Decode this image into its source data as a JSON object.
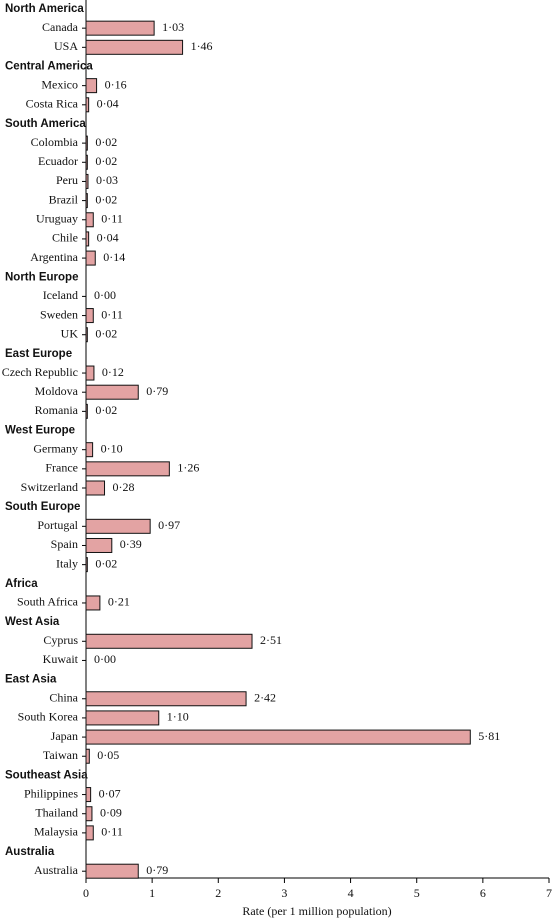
{
  "chart_data": {
    "type": "bar",
    "orientation": "horizontal",
    "color": "#e3a3a3",
    "x_label": "Rate (per 1 million population)",
    "xlim": [
      0,
      7
    ],
    "xticks": [
      0,
      1,
      2,
      3,
      4,
      5,
      6,
      7
    ],
    "groups": [
      {
        "name": "North America",
        "categories": [
          "Canada",
          "USA"
        ],
        "values": [
          1.03,
          1.46
        ],
        "value_labels": [
          "1·03",
          "1·46"
        ]
      },
      {
        "name": "Central America",
        "categories": [
          "Mexico",
          "Costa Rica"
        ],
        "values": [
          0.16,
          0.04
        ],
        "value_labels": [
          "0·16",
          "0·04"
        ]
      },
      {
        "name": "South America",
        "categories": [
          "Colombia",
          "Ecuador",
          "Peru",
          "Brazil",
          "Uruguay",
          "Chile",
          "Argentina"
        ],
        "values": [
          0.02,
          0.02,
          0.03,
          0.02,
          0.11,
          0.04,
          0.14
        ],
        "value_labels": [
          "0·02",
          "0·02",
          "0·03",
          "0·02",
          "0·11",
          "0·04",
          "0·14"
        ]
      },
      {
        "name": "North Europe",
        "categories": [
          "Iceland",
          "Sweden",
          "UK"
        ],
        "values": [
          0,
          0.11,
          0.02
        ],
        "value_labels": [
          "0·00",
          "0·11",
          "0·02"
        ]
      },
      {
        "name": "East Europe",
        "categories": [
          "Czech Republic",
          "Moldova",
          "Romania"
        ],
        "values": [
          0.12,
          0.79,
          0.02
        ],
        "value_labels": [
          "0·12",
          "0·79",
          "0·02"
        ]
      },
      {
        "name": "West Europe",
        "categories": [
          "Germany",
          "France",
          "Switzerland"
        ],
        "values": [
          0.1,
          1.26,
          0.28
        ],
        "value_labels": [
          "0·10",
          "1·26",
          "0·28"
        ]
      },
      {
        "name": "South Europe",
        "categories": [
          "Portugal",
          "Spain",
          "Italy"
        ],
        "values": [
          0.97,
          0.39,
          0.02
        ],
        "value_labels": [
          "0·97",
          "0·39",
          "0·02"
        ]
      },
      {
        "name": "Africa",
        "categories": [
          "South Africa"
        ],
        "values": [
          0.21
        ],
        "value_labels": [
          "0·21"
        ]
      },
      {
        "name": "West Asia",
        "categories": [
          "Cyprus",
          "Kuwait"
        ],
        "values": [
          2.51,
          0
        ],
        "value_labels": [
          "2·51",
          "0·00"
        ]
      },
      {
        "name": "East Asia",
        "categories": [
          "China",
          "South Korea",
          "Japan",
          "Taiwan"
        ],
        "values": [
          2.42,
          1.1,
          5.81,
          0.05
        ],
        "value_labels": [
          "2·42",
          "1·10",
          "5·81",
          "0·05"
        ]
      },
      {
        "name": "Southeast Asia",
        "categories": [
          "Philippines",
          "Thailand",
          "Malaysia"
        ],
        "values": [
          0.07,
          0.09,
          0.11
        ],
        "value_labels": [
          "0·07",
          "0·09",
          "0·11"
        ]
      },
      {
        "name": "Australia",
        "categories": [
          "Australia"
        ],
        "values": [
          0.79
        ],
        "value_labels": [
          "0·79"
        ]
      }
    ]
  }
}
